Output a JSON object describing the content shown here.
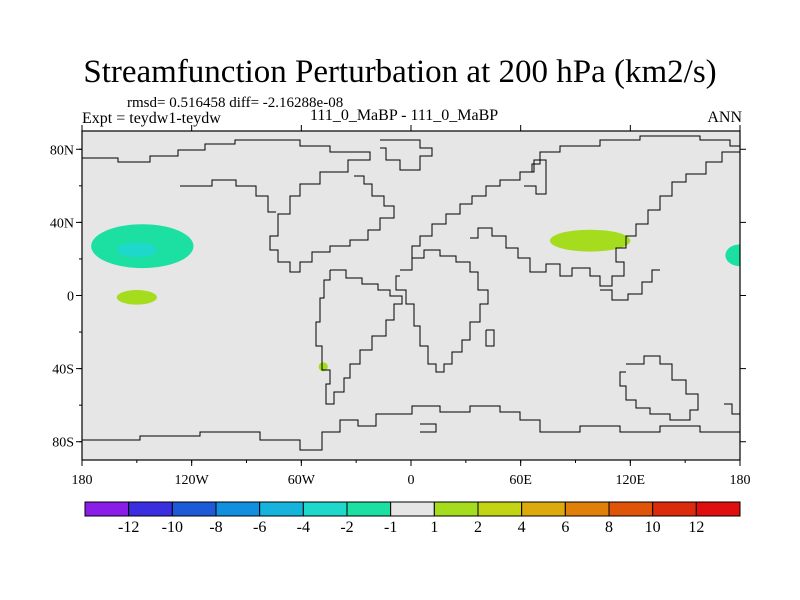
{
  "chart_data": {
    "type": "heatmap",
    "title": "Streamfunction Perturbation at 200 hPa (km2/s)",
    "stats_line": "rmsd= 0.516458 diff= -2.16288e-08",
    "left_label": "Expt = teydw1-teydw",
    "center_label": "111_0_MaBP - 111_0_MaBP",
    "right_label": "ANN",
    "x_ticks": [
      "180",
      "120W",
      "60W",
      "0",
      "60E",
      "120E",
      "180"
    ],
    "y_ticks": [
      "80N",
      "40N",
      "0",
      "40S",
      "80S"
    ],
    "x_range": [
      -180,
      180
    ],
    "y_range": [
      -90,
      90
    ],
    "colorbar": {
      "labels": [
        "-12",
        "-10",
        "-8",
        "-6",
        "-4",
        "-2",
        "-1",
        "1",
        "2",
        "4",
        "6",
        "8",
        "10",
        "12"
      ],
      "colors": [
        "#8a1ee8",
        "#3a2ee0",
        "#1d5ad8",
        "#1190e0",
        "#16b4dc",
        "#1ed8cc",
        "#1ce0a2",
        "#e6e6e6",
        "#a6dc1e",
        "#c2d414",
        "#dcaa0c",
        "#e08008",
        "#e05408",
        "#dc2a0c",
        "#e00e0e"
      ]
    },
    "anomalies": [
      {
        "lon": -147,
        "lat": 27,
        "rlon": 28,
        "rlat": 12,
        "level": "-1",
        "color": "#1ce0a2"
      },
      {
        "lon": -150,
        "lat": 25,
        "rlon": 11,
        "rlat": 4,
        "level": "-2",
        "color": "#1ed8cc"
      },
      {
        "lon": -150,
        "lat": -1,
        "rlon": 11,
        "rlat": 4,
        "level": "2",
        "color": "#a6dc1e"
      },
      {
        "lon": -48,
        "lat": -39,
        "rlon": 2.5,
        "rlat": 2.5,
        "level": "2",
        "color": "#a6dc1e"
      },
      {
        "lon": 98,
        "lat": 30,
        "rlon": 22,
        "rlat": 6,
        "level": "2",
        "color": "#a6dc1e"
      },
      {
        "lon": 180,
        "lat": 22,
        "rlon": 8,
        "rlat": 6,
        "level": "-1",
        "color": "#1ce0a2"
      }
    ]
  }
}
